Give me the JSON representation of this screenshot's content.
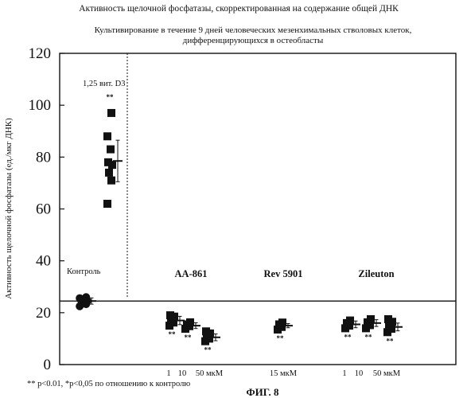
{
  "chart_data": {
    "type": "scatter",
    "title": "Активность щелочной фосфатазы, скорректированная на содержание общей ДНК",
    "subtitle_lines": [
      "Культивирование в течение 9 дней человеческих мезенхимальных стволовых клеток,",
      "дифференцирующихся в остеобласты"
    ],
    "ylabel": "Активность щелочной фосфатазы (ед./мкг ДНК)",
    "ylim": [
      0,
      120
    ],
    "y_ticks": [
      "0",
      "20",
      "40",
      "60",
      "80",
      "100",
      "120"
    ],
    "grid": false,
    "reference_line": {
      "y": 24.5,
      "label": "Контроль"
    },
    "groups": [
      {
        "id": "control",
        "label": "Контроль",
        "doses": [
          {
            "dose_label": "",
            "values": [
              22.5,
              23.3,
              24.0,
              24.5,
              24.8,
              25.2,
              25.6,
              26.0
            ],
            "mean": 24.5,
            "sd": 1.2,
            "significance": ""
          }
        ]
      },
      {
        "id": "vitd3",
        "label": "1,25 вит. D3",
        "doses": [
          {
            "dose_label": "",
            "values": [
              62,
              71,
              74,
              77,
              78,
              83,
              88,
              97
            ],
            "mean": 78.5,
            "sd": 8,
            "significance": "**"
          }
        ]
      },
      {
        "id": "aa861",
        "label": "AA-861",
        "doses": [
          {
            "dose_label": "1",
            "values": [
              15,
              16.2,
              17.5,
              18.5,
              19
            ],
            "mean": 17,
            "sd": 1.6,
            "significance": "**"
          },
          {
            "dose_label": "10",
            "values": [
              13.8,
              14.8,
              15.5,
              16.3
            ],
            "mean": 15,
            "sd": 1.1,
            "significance": "**"
          },
          {
            "dose_label": "50 мкМ",
            "values": [
              9,
              10,
              11,
              12,
              12.8
            ],
            "mean": 10.5,
            "sd": 1.3,
            "significance": "**"
          }
        ]
      },
      {
        "id": "rev5901",
        "label": "Rev 5901",
        "doses": [
          {
            "dose_label": "15 мкМ",
            "values": [
              13.5,
              14.5,
              15.5,
              16.2
            ],
            "mean": 15,
            "sd": 0.8,
            "significance": "**"
          }
        ]
      },
      {
        "id": "zileuton",
        "label": "Zileuton",
        "doses": [
          {
            "dose_label": "1",
            "values": [
              14,
              15,
              16,
              17
            ],
            "mean": 15.5,
            "sd": 1.3,
            "significance": "**"
          },
          {
            "dose_label": "10",
            "values": [
              14,
              15.2,
              16.3,
              17.5
            ],
            "mean": 16,
            "sd": 1.3,
            "significance": "**"
          },
          {
            "dose_label": "50 мкМ",
            "values": [
              12.5,
              13.8,
              15,
              16.5,
              17.5
            ],
            "mean": 14.5,
            "sd": 1.5,
            "significance": "**"
          }
        ]
      }
    ]
  },
  "footnote": "** p<0.01, *p<0,05 по отношению к контролю",
  "figure_caption": "ФИГ. 8",
  "colors": {
    "ink": "#111111",
    "background": "#ffffff"
  }
}
